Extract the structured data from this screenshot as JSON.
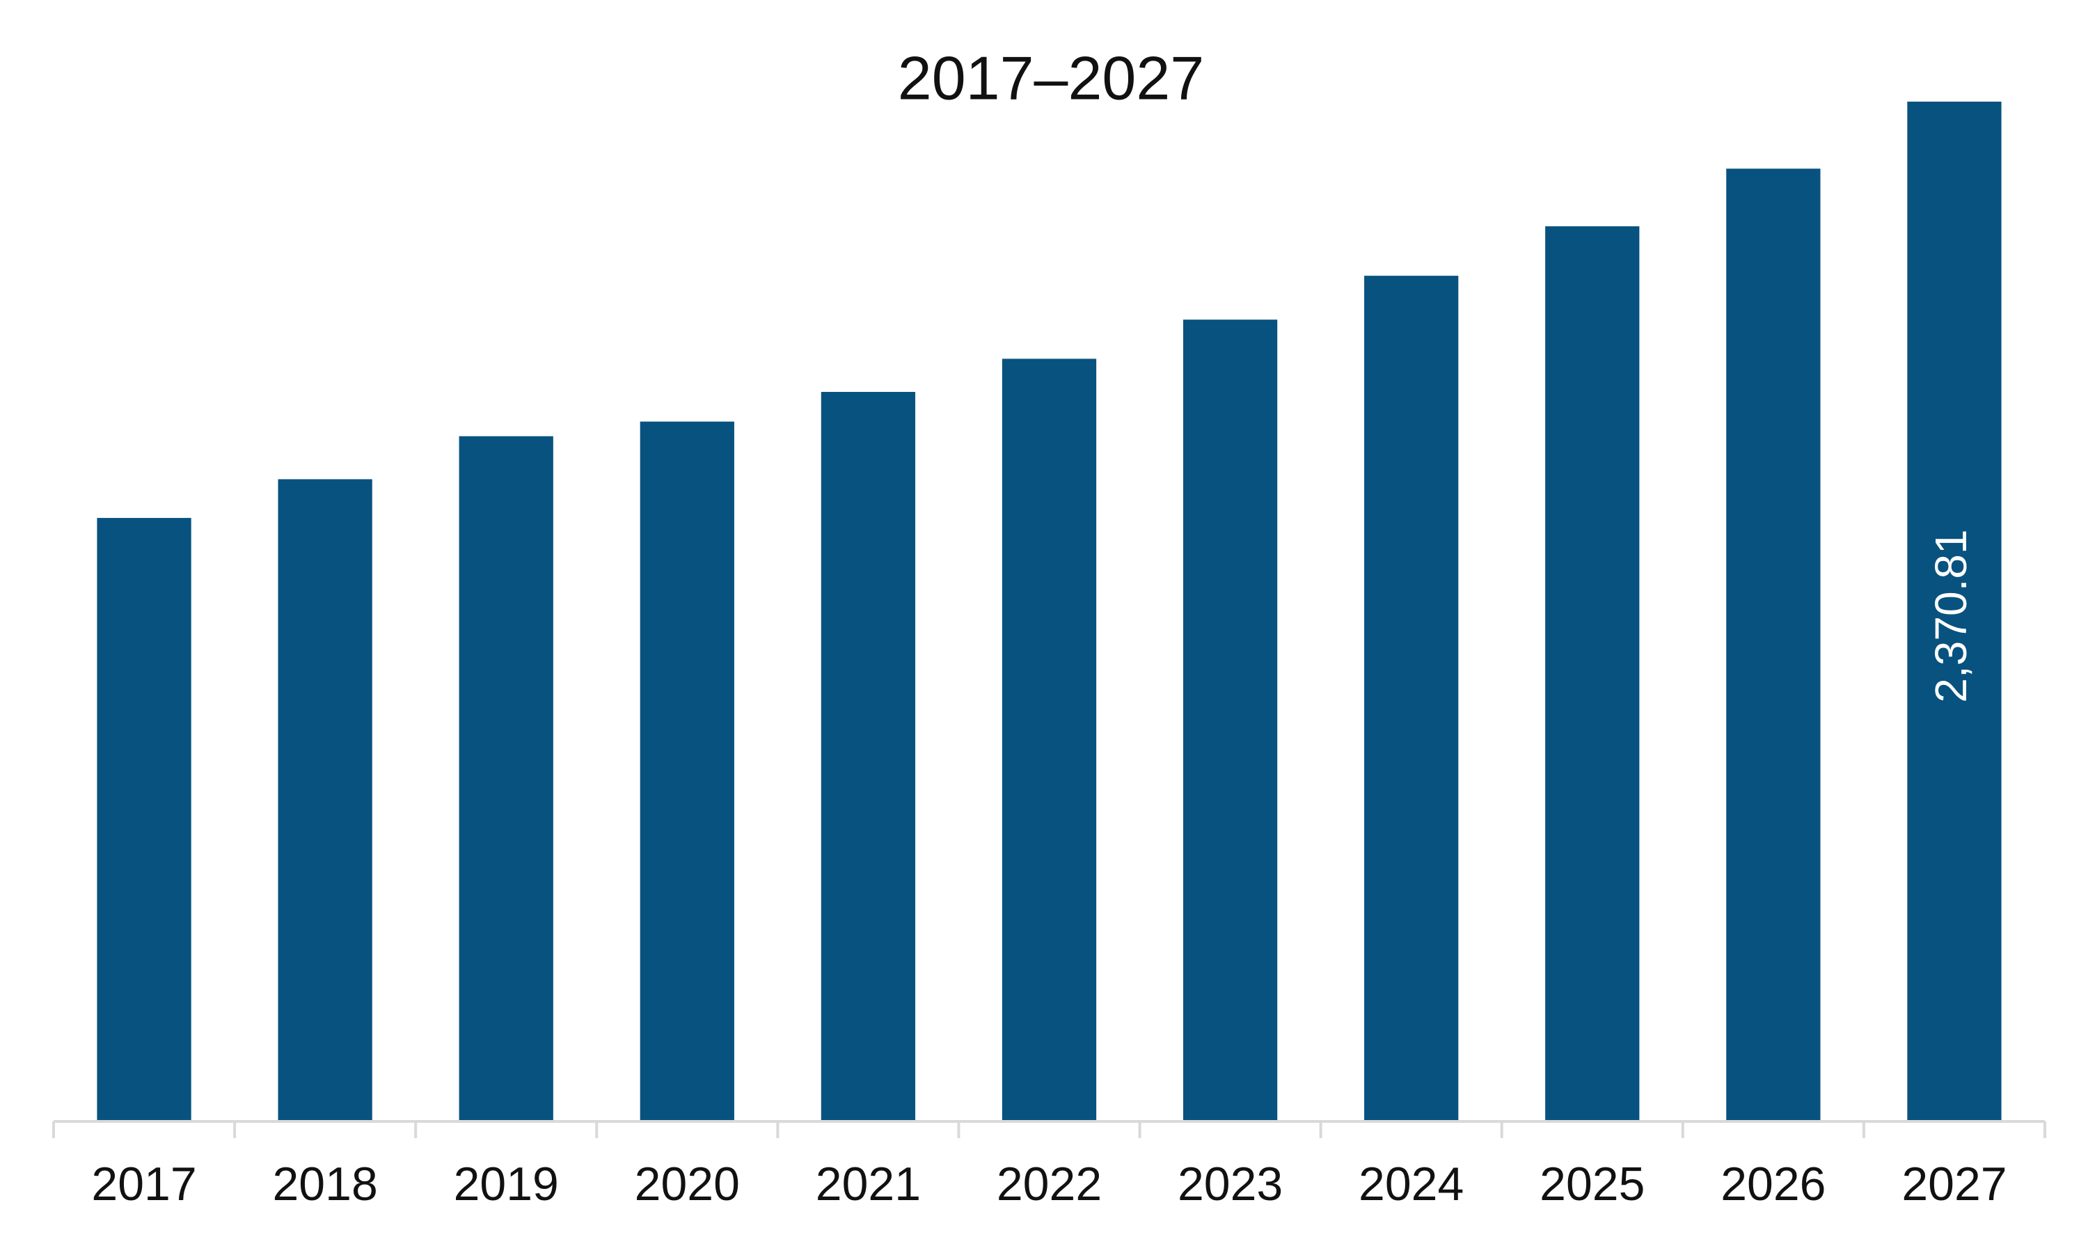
{
  "chart_data": {
    "type": "bar",
    "title": "2017–2027",
    "categories": [
      "2017",
      "2018",
      "2019",
      "2020",
      "2021",
      "2022",
      "2023",
      "2024",
      "2025",
      "2026",
      "2027"
    ],
    "values": [
      1403,
      1493,
      1593,
      1627,
      1696,
      1773,
      1864,
      1966,
      2081,
      2215,
      2370.81
    ],
    "value_labels": [
      null,
      null,
      null,
      null,
      null,
      null,
      null,
      null,
      null,
      null,
      "2,370.81"
    ],
    "color": "#08527f"
  }
}
